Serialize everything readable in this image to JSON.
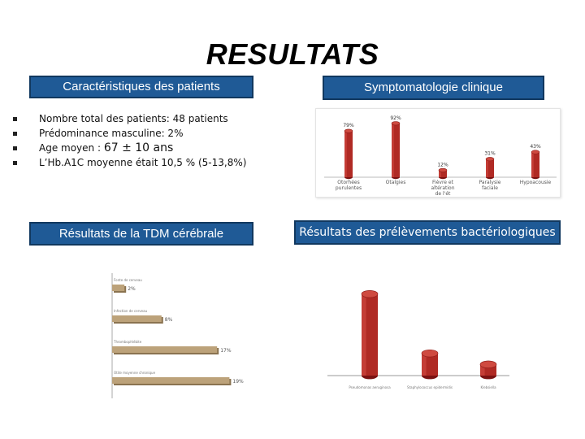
{
  "slide": {
    "title": "RESULTATS",
    "boxes": {
      "characteristics": "Caractéristiques  des patients",
      "symptoms": "Symptomatologie clinique",
      "ct": "Résultats de la TDM cérébrale",
      "bacterio": "Résultats des prélèvements bactériologiques"
    },
    "bullets": [
      {
        "text": "Nombre total des patients: 48 patients",
        "extra": ""
      },
      {
        "text": "Prédominance masculine: 2%",
        "extra": ""
      },
      {
        "text": "Age moyen : ",
        "extra": "67 ± 10 ans"
      },
      {
        "text": "L’Hb.A1C moyenne  était 10,5 % (5-13,8%)",
        "extra": ""
      }
    ]
  },
  "chart_data": [
    {
      "type": "bar",
      "categories": [
        "Otorhées purulentes",
        "Otalgies",
        "Fièvre et altération de l'ét",
        "Paralysie faciale",
        "Hypoacousie"
      ],
      "values": [
        79,
        92,
        12,
        31,
        43
      ],
      "labels": [
        "79%",
        "92%",
        "12%",
        "31%",
        "43%"
      ],
      "ylim": [
        0,
        100
      ],
      "grid": false
    },
    {
      "type": "bar",
      "orientation": "horizontal",
      "categories": [
        "Fonte de cerveau",
        "Infection de cerveau",
        "Thrombophlébite",
        "Otite moyenne chronique"
      ],
      "values": [
        2,
        8,
        17,
        19
      ],
      "labels": [
        "2%",
        "8%",
        "17%",
        "19%"
      ],
      "xlim": [
        0,
        20
      ],
      "grid": false
    },
    {
      "type": "bar",
      "categories": [
        "Pseudomonas aeruginosa",
        "Staphylococcus epidermidis",
        "Klebsiella"
      ],
      "values": [
        88,
        24,
        12
      ],
      "ylim": [
        0,
        100
      ],
      "grid": false
    }
  ]
}
